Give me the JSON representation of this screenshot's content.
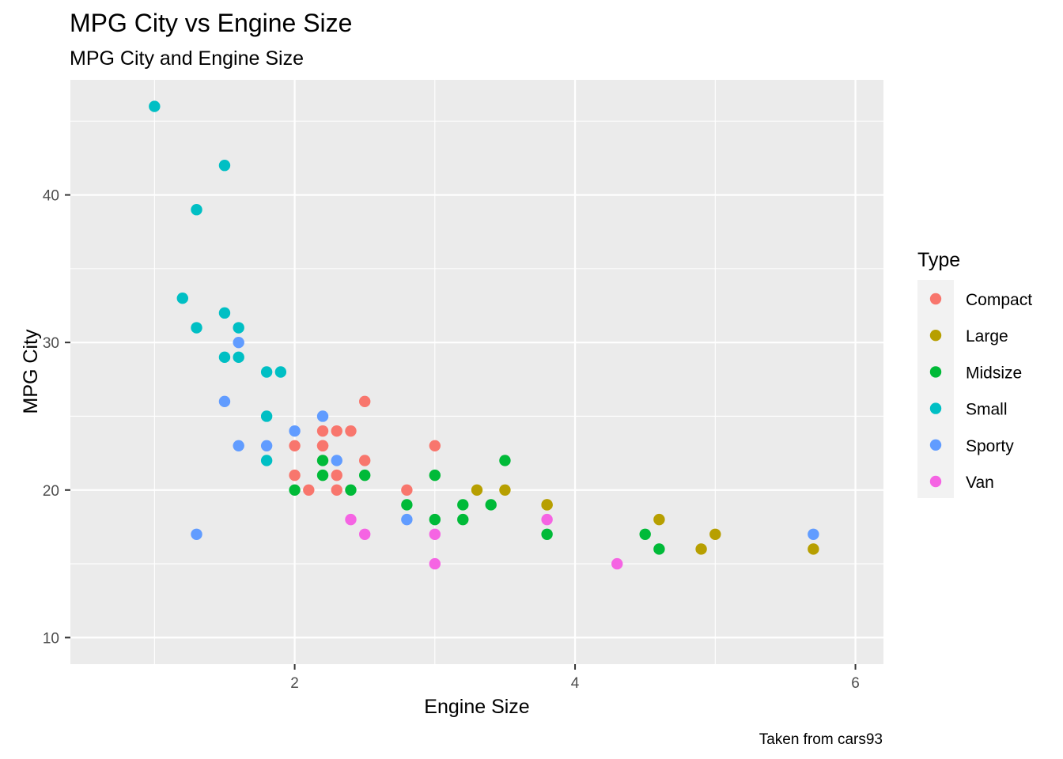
{
  "chart_data": {
    "type": "scatter",
    "title": "MPG City vs Engine Size",
    "subtitle": "MPG City and Engine Size",
    "xlabel": "Engine Size",
    "ylabel": "MPG City",
    "caption": "Taken from cars93",
    "xlim": [
      0.4,
      6.2
    ],
    "ylim": [
      8.2,
      47.8
    ],
    "xticks": [
      2,
      4,
      6
    ],
    "yticks": [
      10,
      20,
      30,
      40
    ],
    "grid": true,
    "legend": {
      "title": "Type",
      "position": "right"
    },
    "series": [
      {
        "name": "Compact",
        "color": "#F8766D",
        "points": [
          [
            2.2,
            23
          ],
          [
            2.2,
            24
          ],
          [
            2.3,
            24
          ],
          [
            2.4,
            24
          ],
          [
            2.5,
            26
          ],
          [
            2.0,
            23
          ],
          [
            2.0,
            21
          ],
          [
            2.1,
            20
          ],
          [
            2.3,
            21
          ],
          [
            2.3,
            20
          ],
          [
            2.5,
            22
          ],
          [
            2.8,
            20
          ],
          [
            3.0,
            23
          ],
          [
            2.2,
            23
          ]
        ]
      },
      {
        "name": "Large",
        "color": "#B79F00",
        "points": [
          [
            3.3,
            20
          ],
          [
            3.5,
            20
          ],
          [
            3.8,
            19
          ],
          [
            3.8,
            19
          ],
          [
            4.6,
            18
          ],
          [
            4.9,
            16
          ],
          [
            5.0,
            17
          ],
          [
            5.7,
            16
          ]
        ]
      },
      {
        "name": "Midsize",
        "color": "#00BA38",
        "points": [
          [
            2.0,
            20
          ],
          [
            2.2,
            22
          ],
          [
            2.2,
            21
          ],
          [
            2.4,
            20
          ],
          [
            2.5,
            21
          ],
          [
            2.8,
            19
          ],
          [
            3.0,
            21
          ],
          [
            3.0,
            18
          ],
          [
            3.2,
            19
          ],
          [
            3.2,
            18
          ],
          [
            3.4,
            19
          ],
          [
            3.5,
            22
          ],
          [
            3.8,
            17
          ],
          [
            4.5,
            17
          ],
          [
            4.6,
            16
          ]
        ]
      },
      {
        "name": "Small",
        "color": "#00BFC4",
        "points": [
          [
            1.0,
            46
          ],
          [
            1.5,
            42
          ],
          [
            1.3,
            39
          ],
          [
            1.2,
            33
          ],
          [
            1.5,
            32
          ],
          [
            1.3,
            31
          ],
          [
            1.6,
            31
          ],
          [
            1.5,
            29
          ],
          [
            1.6,
            29
          ],
          [
            1.8,
            28
          ],
          [
            1.9,
            28
          ],
          [
            1.8,
            25
          ],
          [
            1.8,
            22
          ]
        ]
      },
      {
        "name": "Sporty",
        "color": "#619CFF",
        "points": [
          [
            1.6,
            30
          ],
          [
            1.5,
            26
          ],
          [
            1.6,
            23
          ],
          [
            1.8,
            23
          ],
          [
            2.0,
            24
          ],
          [
            2.2,
            25
          ],
          [
            2.3,
            22
          ],
          [
            2.8,
            18
          ],
          [
            1.3,
            17
          ],
          [
            5.7,
            17
          ]
        ]
      },
      {
        "name": "Van",
        "color": "#F564E3",
        "points": [
          [
            2.4,
            18
          ],
          [
            2.5,
            17
          ],
          [
            3.0,
            17
          ],
          [
            3.0,
            15
          ],
          [
            3.8,
            18
          ],
          [
            4.3,
            15
          ]
        ]
      }
    ]
  }
}
